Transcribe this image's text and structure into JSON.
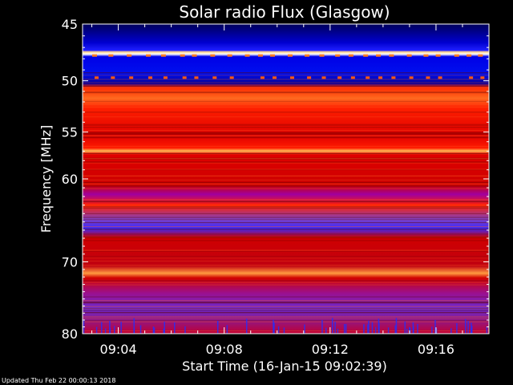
{
  "chart_data": {
    "type": "heatmap",
    "title": "Solar radio Flux (Glasgow)",
    "xlabel": "Start Time (16-Jan-15 09:02:39)",
    "ylabel": "Frequency [MHz]",
    "x_unit": "minutes",
    "xlim_minutes": [
      "09:02:39",
      "09:18:00"
    ],
    "ylim_mhz": [
      45,
      80
    ],
    "y_scale": "log",
    "y_ticks": [
      {
        "value": 45,
        "label": "45"
      },
      {
        "value": 50,
        "label": "50"
      },
      {
        "value": 55,
        "label": "55"
      },
      {
        "value": 60,
        "label": "60"
      },
      {
        "value": 70,
        "label": "70"
      },
      {
        "value": 80,
        "label": "80"
      }
    ],
    "x_ticks": [
      {
        "value": "09:04",
        "label": "09:04"
      },
      {
        "value": "09:08",
        "label": "09:08"
      },
      {
        "value": "09:12",
        "label": "09:12"
      },
      {
        "value": "09:16",
        "label": "09:16"
      }
    ],
    "colormap": [
      "#000066",
      "#0000ee",
      "#8a2be2",
      "#ff0000",
      "#ff6600",
      "#ffd27a"
    ],
    "frequency_bands": [
      {
        "range_mhz": [
          45,
          47.5
        ],
        "level": "low"
      },
      {
        "range_mhz": [
          48.3,
          48.8
        ],
        "level": "very high"
      },
      {
        "range_mhz": [
          50,
          52
        ],
        "level": "low"
      },
      {
        "range_mhz": [
          52.5,
          55
        ],
        "level": "high"
      },
      {
        "range_mhz": [
          55,
          62
        ],
        "level": "medium"
      },
      {
        "range_mhz": [
          59.3,
          59.8
        ],
        "level": "very high"
      },
      {
        "range_mhz": [
          62,
          66
        ],
        "level": "medium"
      },
      {
        "range_mhz": [
          66,
          69
        ],
        "level": "low"
      },
      {
        "range_mhz": [
          69,
          76
        ],
        "level": "medium"
      },
      {
        "range_mhz": [
          76,
          80
        ],
        "level": "low"
      }
    ],
    "grid": false,
    "legend": "none"
  },
  "footer": {
    "updated": "Updated Thu Feb 22 00:00:13 2018"
  }
}
